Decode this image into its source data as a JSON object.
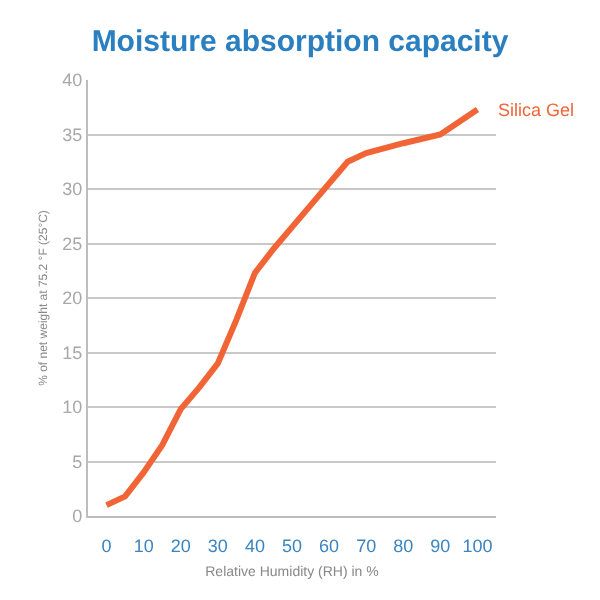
{
  "chart_data": {
    "type": "line",
    "title": "Moisture absorption capacity",
    "xlabel": "Relative Humidity (RH) in %",
    "ylabel": "% of net weight at 75.2 °F (25°C)",
    "x": [
      0,
      5,
      10,
      15,
      20,
      25,
      30,
      35,
      40,
      45,
      50,
      55,
      60,
      65,
      70,
      80,
      90,
      100
    ],
    "series": [
      {
        "name": "Silica Gel",
        "color": "#f06436",
        "values": [
          1,
          1.8,
          4,
          6.5,
          9.8,
          11.8,
          14,
          18,
          22.3,
          24.5,
          26.5,
          28.5,
          30.5,
          32.5,
          33.3,
          34.2,
          35,
          37.3
        ]
      }
    ],
    "xlim": [
      -5,
      105
    ],
    "xticks": [
      0,
      10,
      20,
      30,
      40,
      50,
      60,
      70,
      80,
      90,
      100
    ],
    "ylim": [
      0,
      40
    ],
    "yticks": [
      0,
      5,
      10,
      15,
      20,
      25,
      30,
      35,
      40
    ],
    "grid": "y",
    "legend": false,
    "marker": "none",
    "line_style": "solid"
  }
}
